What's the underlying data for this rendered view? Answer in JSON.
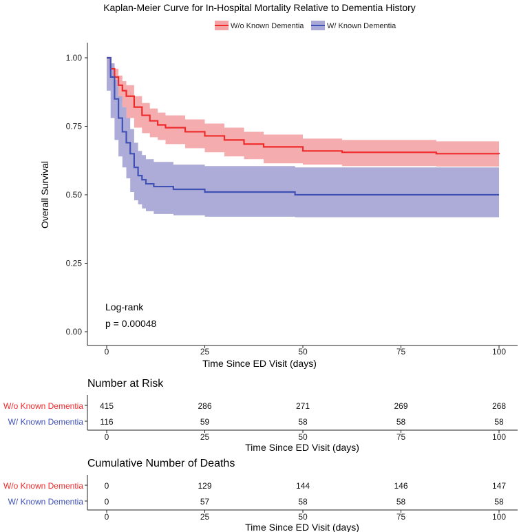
{
  "chart_data": {
    "type": "line",
    "title": "Kaplan-Meier Curve for In-Hospital Mortality Relative to Dementia History",
    "xlabel": "Time Since ED Visit (days)",
    "ylabel": "Overall Survival",
    "xlim": [
      0,
      100
    ],
    "ylim": [
      0,
      1
    ],
    "xticks": [
      "0",
      "25",
      "50",
      "75",
      "100"
    ],
    "yticks": [
      "0.00",
      "0.25",
      "0.50",
      "0.75",
      "1.00"
    ],
    "legend_position": "top",
    "annotation": [
      "Log-rank",
      "p = 0.00048"
    ],
    "series": [
      {
        "name": "W/o Known Dementia",
        "color": "#ee2a2a",
        "band_color": "#f4a3a6",
        "x": [
          0,
          1,
          2,
          3,
          4,
          5,
          7,
          9,
          11,
          13,
          15,
          20,
          25,
          30,
          35,
          40,
          50,
          60,
          84,
          100
        ],
        "y": [
          1,
          0.96,
          0.93,
          0.9,
          0.88,
          0.86,
          0.82,
          0.79,
          0.77,
          0.755,
          0.745,
          0.73,
          0.715,
          0.7,
          0.685,
          0.675,
          0.66,
          0.655,
          0.65,
          0.648
        ],
        "lower": [
          1,
          0.94,
          0.9,
          0.865,
          0.84,
          0.82,
          0.78,
          0.745,
          0.725,
          0.71,
          0.7,
          0.685,
          0.67,
          0.655,
          0.64,
          0.63,
          0.615,
          0.61,
          0.605,
          0.603
        ],
        "upper": [
          1,
          0.98,
          0.96,
          0.935,
          0.915,
          0.9,
          0.86,
          0.835,
          0.815,
          0.8,
          0.79,
          0.775,
          0.76,
          0.745,
          0.73,
          0.72,
          0.705,
          0.7,
          0.695,
          0.693
        ]
      },
      {
        "name": "W/ Known Dementia",
        "color": "#3f51b5",
        "band_color": "#a9a8d6",
        "x": [
          0,
          1,
          2,
          3,
          4,
          5,
          6,
          7,
          8,
          9,
          10,
          12,
          17,
          25,
          48,
          100
        ],
        "y": [
          1,
          0.93,
          0.85,
          0.78,
          0.73,
          0.69,
          0.65,
          0.6,
          0.57,
          0.555,
          0.54,
          0.53,
          0.52,
          0.51,
          0.5,
          0.5
        ],
        "lower": [
          1,
          0.88,
          0.78,
          0.7,
          0.64,
          0.6,
          0.56,
          0.51,
          0.48,
          0.465,
          0.45,
          0.44,
          0.43,
          0.425,
          0.42,
          0.418
        ],
        "upper": [
          1,
          0.98,
          0.92,
          0.86,
          0.82,
          0.78,
          0.74,
          0.69,
          0.66,
          0.645,
          0.63,
          0.62,
          0.61,
          0.605,
          0.6,
          0.6
        ]
      }
    ]
  },
  "risk_table": {
    "title": "Number at Risk",
    "xlabel": "Time Since ED Visit (days)",
    "rows": [
      {
        "label": "W/o Known Dementia",
        "values": [
          "415",
          "286",
          "271",
          "269",
          "268"
        ]
      },
      {
        "label": "W/ Known Dementia",
        "values": [
          "116",
          "59",
          "58",
          "58",
          "58"
        ]
      }
    ]
  },
  "deaths_table": {
    "title": "Cumulative Number of Deaths",
    "xlabel": "Time Since ED Visit (days)",
    "rows": [
      {
        "label": "W/o Known Dementia",
        "values": [
          "0",
          "129",
          "144",
          "146",
          "147"
        ]
      },
      {
        "label": "W/ Known Dementia",
        "values": [
          "0",
          "57",
          "58",
          "58",
          "58"
        ]
      }
    ]
  }
}
